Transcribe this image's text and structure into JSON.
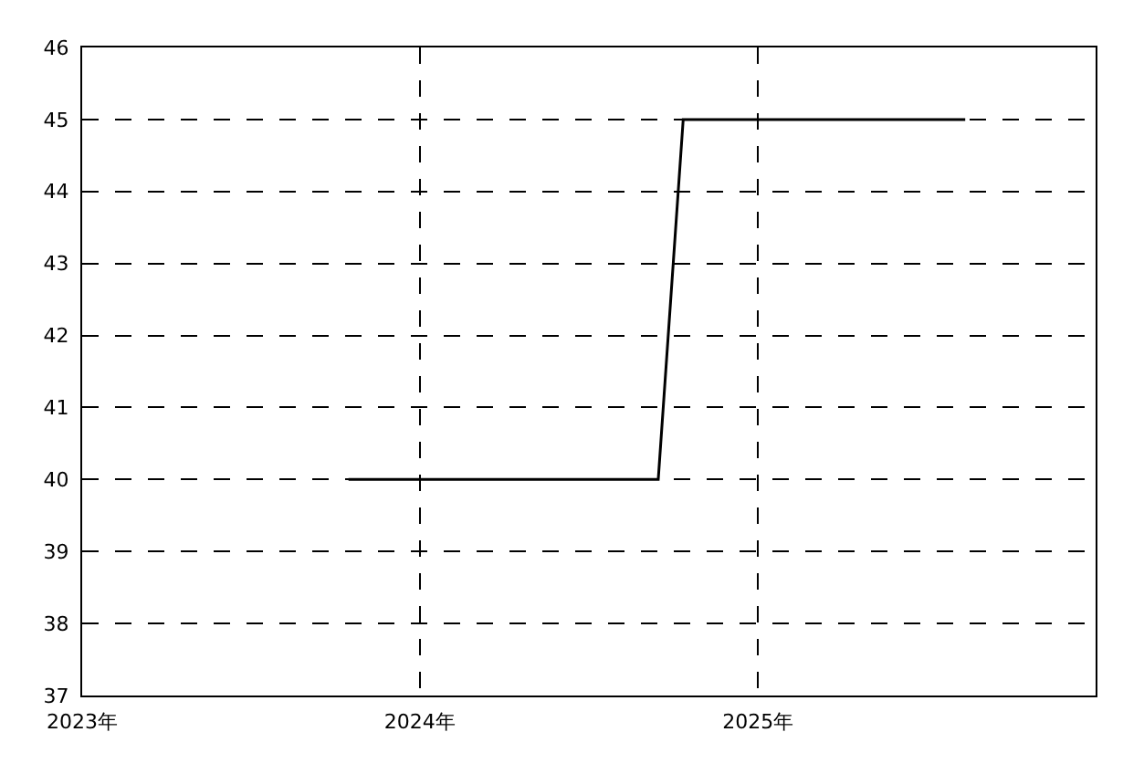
{
  "chart_data": {
    "type": "line",
    "x": [
      "2023-10-16",
      "2024-09-15",
      "2024-10-12",
      "2025-08-13"
    ],
    "series": [
      {
        "color": "#000000",
        "values": [
          40,
          40,
          45,
          45
        ]
      }
    ],
    "xlim": [
      "2023",
      "2026"
    ],
    "xticks": [
      {
        "value": "2023",
        "label": "2023年"
      },
      {
        "value": "2024",
        "label": "2024年"
      },
      {
        "value": "2025",
        "label": "2025年"
      }
    ],
    "ylim": [
      37,
      46
    ],
    "yticks": [
      37,
      38,
      39,
      40,
      41,
      42,
      43,
      44,
      45,
      46
    ],
    "grid": true,
    "marker": "none",
    "line_style": "solid"
  }
}
